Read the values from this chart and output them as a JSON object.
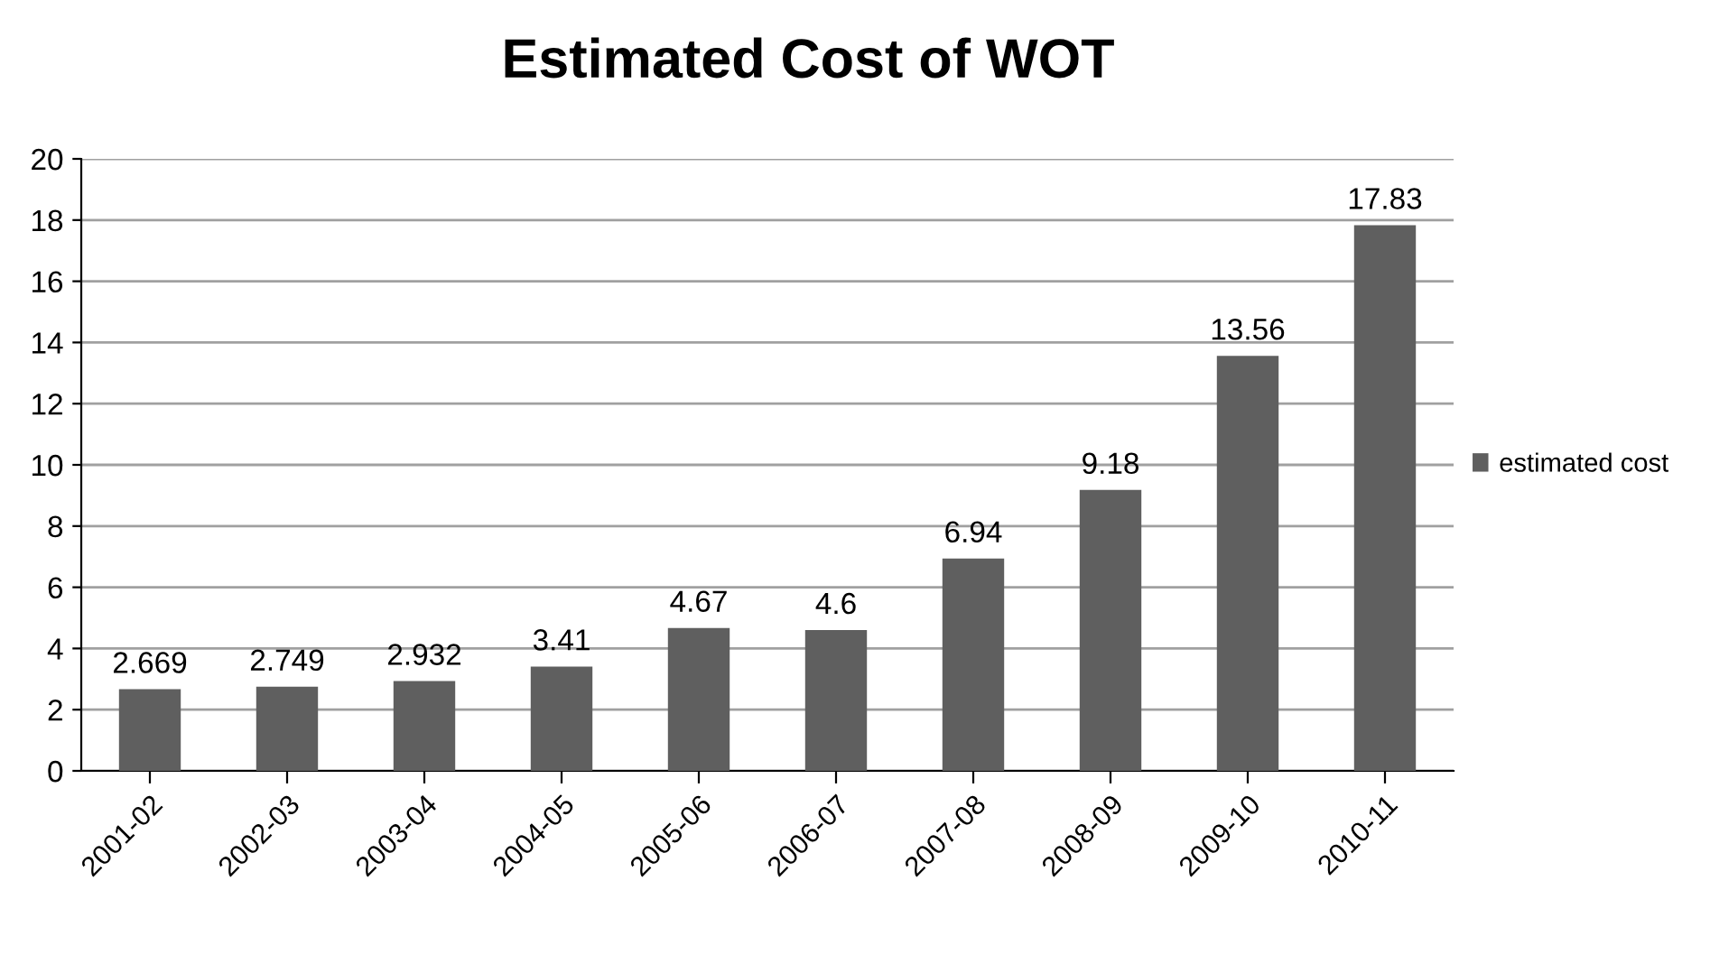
{
  "chart_data": {
    "type": "bar",
    "title": "Estimated Cost of WOT",
    "categories": [
      "2001-02",
      "2002-03",
      "2003-04",
      "2004-05",
      "2005-06",
      "2006-07",
      "2007-08",
      "2008-09",
      "2009-10",
      "2010-11"
    ],
    "series": [
      {
        "name": "estimated cost",
        "color": "#5f5f5f",
        "values": [
          2.669,
          2.749,
          2.932,
          3.41,
          4.67,
          4.6,
          6.94,
          9.18,
          13.56,
          17.83
        ]
      }
    ],
    "ylim": [
      0,
      20
    ],
    "yticks": [
      0,
      2,
      4,
      6,
      8,
      10,
      12,
      14,
      16,
      18,
      20
    ],
    "grid": "y",
    "legend": "right",
    "data_labels": true
  }
}
